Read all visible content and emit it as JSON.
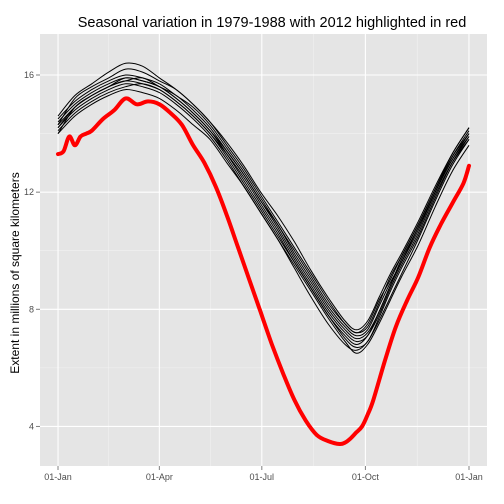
{
  "chart_data": {
    "type": "line",
    "title": "Seasonal variation in 1979-1988 with 2012 highlighted in red",
    "xlabel": "",
    "ylabel": "Extent in millions of square kilometers",
    "x_ticks": [
      {
        "label": "01-Jan",
        "day": 0
      },
      {
        "label": "01-Apr",
        "day": 90
      },
      {
        "label": "01-Jul",
        "day": 181
      },
      {
        "label": "01-Oct",
        "day": 273
      },
      {
        "label": "01-Jan",
        "day": 365
      }
    ],
    "y_ticks": [
      4,
      8,
      12,
      16
    ],
    "xlim": [
      -16,
      381
    ],
    "ylim": [
      2.65,
      17.4
    ],
    "background": "#e5e5e5",
    "grid": true,
    "x_unit": "day of year (0 = 01-Jan)",
    "series": [
      {
        "color": "#000000",
        "highlight": false,
        "x": [
          0,
          15,
          30,
          45,
          60,
          75,
          90,
          105,
          120,
          135,
          150,
          165,
          180,
          195,
          210,
          225,
          240,
          255,
          265,
          275,
          285,
          295,
          305,
          320,
          335,
          350,
          365
        ],
        "y": [
          14.0,
          14.9,
          15.3,
          15.6,
          15.8,
          15.9,
          15.6,
          15.3,
          14.8,
          14.2,
          13.4,
          12.6,
          11.7,
          10.9,
          9.9,
          9.0,
          8.1,
          7.4,
          7.1,
          7.3,
          8.1,
          8.9,
          9.6,
          10.7,
          12.0,
          13.2,
          14.1
        ]
      },
      {
        "color": "#000000",
        "highlight": false,
        "x": [
          0,
          15,
          30,
          45,
          60,
          75,
          90,
          105,
          120,
          135,
          150,
          165,
          180,
          195,
          210,
          225,
          240,
          255,
          265,
          275,
          285,
          295,
          305,
          320,
          335,
          350,
          365
        ],
        "y": [
          14.3,
          15.2,
          15.6,
          15.9,
          16.2,
          16.1,
          15.8,
          15.5,
          15.0,
          14.4,
          13.7,
          12.9,
          12.0,
          11.2,
          10.3,
          9.3,
          8.4,
          7.6,
          7.3,
          7.6,
          8.4,
          9.2,
          9.9,
          11.0,
          12.2,
          13.3,
          14.2
        ]
      },
      {
        "color": "#000000",
        "highlight": false,
        "x": [
          0,
          15,
          30,
          45,
          60,
          75,
          90,
          105,
          120,
          135,
          150,
          165,
          180,
          195,
          210,
          225,
          240,
          255,
          265,
          275,
          285,
          295,
          305,
          320,
          335,
          350,
          365
        ],
        "y": [
          14.1,
          14.7,
          15.1,
          15.4,
          15.6,
          15.7,
          15.5,
          15.1,
          14.6,
          14.0,
          13.2,
          12.3,
          11.4,
          10.5,
          9.6,
          8.7,
          7.8,
          7.0,
          6.7,
          6.9,
          7.7,
          8.6,
          9.4,
          10.5,
          11.8,
          13.0,
          13.9
        ]
      },
      {
        "color": "#000000",
        "highlight": false,
        "x": [
          0,
          15,
          30,
          45,
          60,
          75,
          90,
          105,
          120,
          135,
          150,
          165,
          180,
          195,
          210,
          225,
          240,
          255,
          265,
          275,
          285,
          295,
          305,
          320,
          335,
          350,
          365
        ],
        "y": [
          14.6,
          15.3,
          15.7,
          16.1,
          16.4,
          16.3,
          15.9,
          15.5,
          15.0,
          14.4,
          13.6,
          12.8,
          11.9,
          11.0,
          10.1,
          9.2,
          8.3,
          7.5,
          7.2,
          7.4,
          8.2,
          9.1,
          9.8,
          10.9,
          12.1,
          13.2,
          14.0
        ]
      },
      {
        "color": "#000000",
        "highlight": false,
        "x": [
          0,
          15,
          30,
          45,
          60,
          75,
          90,
          105,
          120,
          135,
          150,
          165,
          180,
          195,
          210,
          225,
          240,
          255,
          265,
          275,
          285,
          295,
          305,
          320,
          335,
          350,
          365
        ],
        "y": [
          14.2,
          14.8,
          15.2,
          15.5,
          15.7,
          15.6,
          15.4,
          15.0,
          14.5,
          13.9,
          13.1,
          12.2,
          11.3,
          10.4,
          9.4,
          8.4,
          7.5,
          6.8,
          6.6,
          6.9,
          7.6,
          8.4,
          9.2,
          10.4,
          11.7,
          12.9,
          13.8
        ]
      },
      {
        "color": "#000000",
        "highlight": false,
        "x": [
          0,
          15,
          30,
          45,
          60,
          75,
          90,
          105,
          120,
          135,
          150,
          165,
          180,
          195,
          210,
          225,
          240,
          255,
          265,
          275,
          285,
          295,
          305,
          320,
          335,
          350,
          365
        ],
        "y": [
          14.4,
          15.0,
          15.4,
          15.7,
          15.9,
          15.8,
          15.6,
          15.2,
          14.7,
          14.1,
          13.4,
          12.6,
          11.7,
          10.8,
          9.8,
          8.9,
          8.0,
          7.3,
          7.0,
          7.2,
          7.9,
          8.8,
          9.6,
          10.8,
          12.0,
          13.1,
          13.9
        ]
      },
      {
        "color": "#000000",
        "highlight": false,
        "x": [
          0,
          15,
          30,
          45,
          60,
          75,
          90,
          105,
          120,
          135,
          150,
          165,
          180,
          195,
          210,
          225,
          240,
          255,
          265,
          275,
          285,
          295,
          305,
          320,
          335,
          350,
          365
        ],
        "y": [
          14.0,
          14.6,
          15.0,
          15.3,
          15.5,
          15.4,
          15.2,
          14.8,
          14.3,
          13.8,
          13.0,
          12.2,
          11.3,
          10.4,
          9.5,
          8.6,
          7.7,
          6.9,
          6.5,
          6.8,
          7.5,
          8.3,
          9.1,
          10.2,
          11.5,
          12.7,
          13.6
        ]
      },
      {
        "color": "#000000",
        "highlight": false,
        "x": [
          0,
          15,
          30,
          45,
          60,
          75,
          90,
          105,
          120,
          135,
          150,
          165,
          180,
          195,
          210,
          225,
          240,
          255,
          265,
          275,
          285,
          295,
          305,
          320,
          335,
          350,
          365
        ],
        "y": [
          14.5,
          15.1,
          15.5,
          15.8,
          16.0,
          15.9,
          15.7,
          15.3,
          14.9,
          14.3,
          13.5,
          12.7,
          11.8,
          10.9,
          10.0,
          9.1,
          8.2,
          7.5,
          7.2,
          7.5,
          8.3,
          9.0,
          9.8,
          10.9,
          12.1,
          13.3,
          14.2
        ]
      },
      {
        "color": "#000000",
        "highlight": false,
        "x": [
          0,
          15,
          30,
          45,
          60,
          75,
          90,
          105,
          120,
          135,
          150,
          165,
          180,
          195,
          210,
          225,
          240,
          255,
          265,
          275,
          285,
          295,
          305,
          320,
          335,
          350,
          365
        ],
        "y": [
          14.2,
          14.9,
          15.3,
          15.6,
          15.8,
          15.7,
          15.5,
          15.1,
          14.6,
          14.0,
          13.3,
          12.5,
          11.6,
          10.7,
          9.7,
          8.8,
          7.9,
          7.2,
          6.9,
          7.1,
          7.8,
          8.7,
          9.5,
          10.6,
          11.9,
          13.0,
          13.8
        ]
      },
      {
        "color": "#000000",
        "highlight": false,
        "x": [
          0,
          15,
          30,
          45,
          60,
          75,
          90,
          105,
          120,
          135,
          150,
          165,
          180,
          195,
          210,
          225,
          240,
          255,
          265,
          275,
          285,
          295,
          305,
          320,
          335,
          350,
          365
        ],
        "y": [
          14.3,
          14.9,
          15.3,
          15.6,
          15.9,
          15.8,
          15.6,
          15.2,
          14.7,
          14.1,
          13.3,
          12.4,
          11.5,
          10.6,
          9.6,
          8.7,
          7.8,
          7.1,
          6.8,
          7.1,
          7.9,
          8.8,
          9.7,
          10.8,
          12.0,
          13.1,
          14.0
        ]
      },
      {
        "color": "#ff0000",
        "highlight": true,
        "x": [
          0,
          5,
          10,
          15,
          20,
          25,
          30,
          40,
          50,
          60,
          70,
          80,
          90,
          100,
          110,
          120,
          130,
          140,
          150,
          160,
          170,
          180,
          190,
          200,
          210,
          220,
          230,
          240,
          250,
          255,
          260,
          265,
          270,
          275,
          280,
          290,
          300,
          310,
          320,
          330,
          340,
          350,
          360,
          365
        ],
        "y": [
          13.3,
          13.4,
          13.9,
          13.6,
          13.9,
          14.0,
          14.1,
          14.5,
          14.8,
          15.2,
          15.0,
          15.1,
          15.0,
          14.7,
          14.3,
          13.6,
          13.0,
          12.2,
          11.2,
          10.1,
          9.0,
          7.9,
          6.8,
          5.8,
          4.9,
          4.2,
          3.7,
          3.5,
          3.4,
          3.45,
          3.6,
          3.8,
          4.0,
          4.4,
          4.9,
          6.2,
          7.4,
          8.3,
          9.1,
          10.1,
          10.9,
          11.6,
          12.3,
          12.9
        ]
      }
    ]
  }
}
